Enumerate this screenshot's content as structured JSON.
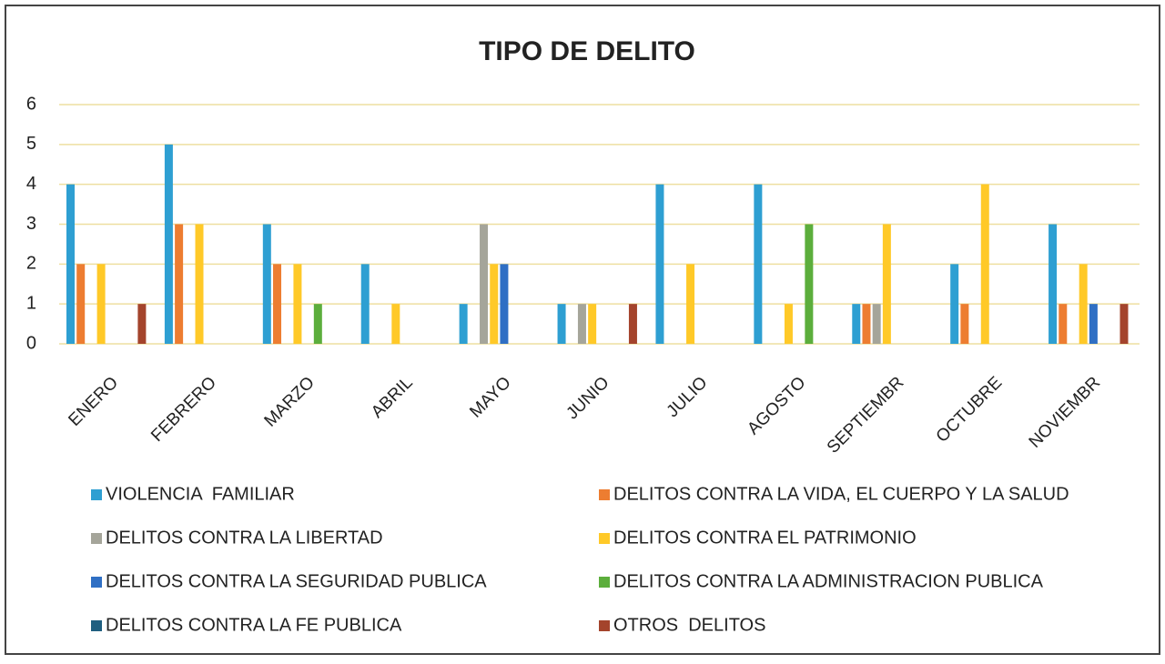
{
  "chart_data": {
    "type": "bar",
    "title": "TIPO DE DELITO",
    "categories": [
      "ENERO",
      "FEBRERO",
      "MARZO",
      "ABRIL",
      "MAYO",
      "JUNIO",
      "JULIO",
      "AGOSTO",
      "SEPTIEMBR",
      "OCTUBRE",
      "NOVIEMBR"
    ],
    "series": [
      {
        "name": "VIOLENCIA  FAMILIAR",
        "color": "#2e9fd2",
        "values": [
          4,
          5,
          3,
          2,
          1,
          1,
          4,
          4,
          1,
          2,
          3
        ]
      },
      {
        "name": "DELITOS CONTRA LA VIDA, EL CUERPO Y LA SALUD",
        "color": "#ed7d31",
        "values": [
          2,
          3,
          2,
          0,
          0,
          0,
          0,
          0,
          1,
          1,
          1
        ]
      },
      {
        "name": "DELITOS CONTRA LA LIBERTAD",
        "color": "#a5a59a",
        "values": [
          0,
          0,
          0,
          0,
          3,
          1,
          0,
          0,
          1,
          0,
          0
        ]
      },
      {
        "name": "DELITOS CONTRA EL PATRIMONIO",
        "color": "#ffc928",
        "values": [
          2,
          3,
          2,
          1,
          2,
          1,
          2,
          1,
          3,
          4,
          2
        ]
      },
      {
        "name": "DELITOS CONTRA LA SEGURIDAD PUBLICA",
        "color": "#2f6fc4",
        "values": [
          0,
          0,
          0,
          0,
          2,
          0,
          0,
          0,
          0,
          0,
          1
        ]
      },
      {
        "name": "DELITOS CONTRA LA ADMINISTRACION PUBLICA",
        "color": "#5cae3c",
        "values": [
          0,
          0,
          1,
          0,
          0,
          0,
          0,
          3,
          0,
          0,
          0
        ]
      },
      {
        "name": "DELITOS CONTRA LA FE PUBLICA",
        "color": "#1f5f80",
        "values": [
          0,
          0,
          0,
          0,
          0,
          0,
          0,
          0,
          0,
          0,
          0
        ]
      },
      {
        "name": "OTROS  DELITOS",
        "color": "#a4442c",
        "values": [
          1,
          0,
          0,
          0,
          0,
          1,
          0,
          0,
          0,
          0,
          1
        ]
      }
    ],
    "ylim": [
      0,
      6
    ],
    "yticks": [
      0,
      1,
      2,
      3,
      4,
      5,
      6
    ],
    "grid": true
  }
}
